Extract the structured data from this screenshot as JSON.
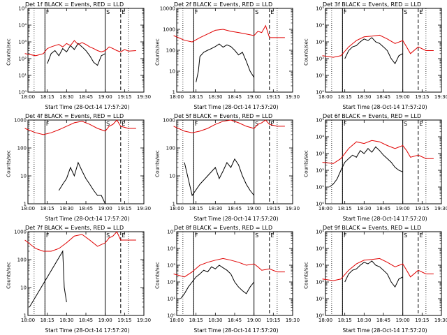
{
  "colors": {
    "events": "#000000",
    "lld": "#e00000",
    "axes": "#000000"
  },
  "chart_data": [
    {
      "type": "line",
      "title": "Det 1f BLACK = Events, RED = LLD",
      "xlabel": "Start Time (28-Oct-14 17:57:20)",
      "ylabel": "Counts/sec",
      "scale": "log",
      "ylim": [
        1,
        100000
      ],
      "ytick_labels": [
        "10⁰",
        "10¹",
        "10²",
        "10³",
        "10⁴",
        "10⁵"
      ],
      "series": [
        {
          "name": "Events",
          "x": [
            18.25,
            18.3,
            18.35,
            18.4,
            18.45,
            18.5,
            18.55,
            18.6,
            18.65,
            18.7,
            18.75,
            18.8,
            18.85,
            18.9,
            18.95,
            19.0
          ],
          "values": [
            50,
            200,
            300,
            150,
            400,
            250,
            600,
            350,
            800,
            500,
            300,
            150,
            60,
            40,
            150,
            200
          ]
        },
        {
          "name": "LLD",
          "x": [
            17.96,
            18.1,
            18.2,
            18.25,
            18.3,
            18.35,
            18.4,
            18.45,
            18.5,
            18.55,
            18.6,
            18.65,
            18.7,
            18.75,
            18.8,
            18.85,
            18.9,
            18.95,
            19.0,
            19.05,
            19.1,
            19.15,
            19.2,
            19.25,
            19.3,
            19.4
          ],
          "values": [
            200,
            150,
            200,
            400,
            500,
            600,
            700,
            500,
            800,
            600,
            1200,
            700,
            900,
            700,
            500,
            400,
            300,
            250,
            300,
            500,
            400,
            300,
            250,
            350,
            280,
            300
          ]
        }
      ],
      "markers": [
        {
          "label": "F",
          "x": 18.22
        },
        {
          "label": "S",
          "x": 19.0
        },
        {
          "label": "E",
          "x": 19.2
        }
      ]
    },
    {
      "type": "line",
      "title": "Det 2f BLACK = Events, RED = LLD",
      "xlabel": "Start Time (28-Oct-14 17:57:20)",
      "ylabel": "Counts/sec",
      "scale": "log",
      "ylim": [
        1,
        10000
      ],
      "ytick_labels": [
        "1",
        "10",
        "100",
        "1000",
        "10000"
      ],
      "series": [
        {
          "name": "Events",
          "x": [
            18.25,
            18.28,
            18.3,
            18.35,
            18.4,
            18.45,
            18.5,
            18.55,
            18.6,
            18.65,
            18.7,
            18.75,
            18.8,
            18.85,
            18.9,
            18.95,
            19.0
          ],
          "values": [
            3,
            10,
            50,
            80,
            100,
            120,
            150,
            200,
            140,
            180,
            150,
            100,
            60,
            80,
            30,
            10,
            5
          ]
        },
        {
          "name": "LLD",
          "x": [
            17.96,
            18.1,
            18.2,
            18.3,
            18.4,
            18.5,
            18.6,
            18.7,
            18.8,
            18.9,
            19.0,
            19.05,
            19.1,
            19.15,
            19.2,
            19.3,
            19.4
          ],
          "values": [
            500,
            300,
            250,
            400,
            600,
            900,
            1000,
            800,
            700,
            600,
            500,
            800,
            700,
            1500,
            400,
            400,
            400
          ]
        }
      ],
      "markers": [
        {
          "label": "F",
          "x": 18.22
        },
        {
          "label": "S",
          "x": 19.0
        },
        {
          "label": "E",
          "x": 19.2
        }
      ]
    },
    {
      "type": "line",
      "title": "Det 3f BLACK = Events, RED = LLD",
      "xlabel": "Start Time (28-Oct-14 17:57:20)",
      "ylabel": "Counts/sec",
      "scale": "log",
      "ylim": [
        1,
        100000
      ],
      "ytick_labels": [
        "10⁰",
        "10¹",
        "10²",
        "10³",
        "10⁴",
        "10⁵"
      ],
      "series": [
        {
          "name": "Events",
          "x": [
            18.25,
            18.3,
            18.35,
            18.4,
            18.45,
            18.5,
            18.55,
            18.6,
            18.65,
            18.7,
            18.75,
            18.8,
            18.85,
            18.9,
            18.95,
            19.0
          ],
          "values": [
            100,
            300,
            500,
            600,
            1000,
            1500,
            1200,
            1800,
            1000,
            800,
            500,
            300,
            100,
            50,
            150,
            200
          ]
        },
        {
          "name": "LLD",
          "x": [
            17.96,
            18.1,
            18.2,
            18.3,
            18.4,
            18.5,
            18.6,
            18.7,
            18.8,
            18.9,
            19.0,
            19.05,
            19.1,
            19.2,
            19.3,
            19.4
          ],
          "values": [
            150,
            120,
            150,
            500,
            1200,
            2000,
            2200,
            2500,
            1500,
            800,
            1200,
            500,
            200,
            500,
            300,
            300
          ]
        }
      ],
      "markers": [
        {
          "label": "F",
          "x": 18.22
        },
        {
          "label": "S",
          "x": 19.0
        },
        {
          "label": "E",
          "x": 19.2
        }
      ]
    },
    {
      "type": "line",
      "title": "Det 4f BLACK = Events, RED = LLD",
      "xlabel": "Start Time (28-Oct-14 17:57:20)",
      "ylabel": "Counts/sec",
      "scale": "log",
      "ylim": [
        1,
        1000
      ],
      "ytick_labels": [
        "1",
        "10",
        "100",
        "1000"
      ],
      "series": [
        {
          "name": "Events",
          "x": [
            18.4,
            18.45,
            18.5,
            18.55,
            18.6,
            18.65,
            18.7,
            18.75,
            18.8,
            18.85,
            18.9,
            18.95,
            19.0
          ],
          "values": [
            3,
            5,
            8,
            20,
            10,
            30,
            15,
            8,
            5,
            3,
            2,
            2,
            1
          ]
        },
        {
          "name": "LLD",
          "x": [
            17.96,
            18.1,
            18.2,
            18.3,
            18.4,
            18.5,
            18.6,
            18.7,
            18.8,
            18.9,
            19.0,
            19.05,
            19.1,
            19.15,
            19.2,
            19.3,
            19.4
          ],
          "values": [
            500,
            350,
            300,
            350,
            450,
            600,
            800,
            900,
            700,
            500,
            400,
            600,
            700,
            1000,
            600,
            500,
            500
          ]
        }
      ],
      "markers": [
        {
          "label": "F",
          "x": 18.22
        },
        {
          "label": "S",
          "x": 19.0
        },
        {
          "label": "E",
          "x": 19.2
        }
      ]
    },
    {
      "type": "line",
      "title": "Det 5f BLACK = Events, RED = LLD",
      "xlabel": "Start Time (28-Oct-14 17:57:20)",
      "ylabel": "Counts/sec",
      "scale": "log",
      "ylim": [
        1,
        1000
      ],
      "ytick_labels": [
        "1",
        "10",
        "100",
        "1000"
      ],
      "series": [
        {
          "name": "Events",
          "x": [
            18.1,
            18.2,
            18.3,
            18.4,
            18.5,
            18.55,
            18.6,
            18.65,
            18.7,
            18.75,
            18.8,
            18.85,
            18.9,
            18.95,
            19.0
          ],
          "values": [
            30,
            2,
            5,
            10,
            20,
            8,
            15,
            30,
            20,
            40,
            25,
            10,
            5,
            3,
            2
          ]
        },
        {
          "name": "LLD",
          "x": [
            17.96,
            18.1,
            18.2,
            18.3,
            18.4,
            18.5,
            18.6,
            18.7,
            18.8,
            18.9,
            19.0,
            19.05,
            19.1,
            19.15,
            19.2,
            19.3,
            19.4
          ],
          "values": [
            600,
            400,
            350,
            400,
            500,
            700,
            900,
            1000,
            800,
            600,
            500,
            700,
            800,
            1000,
            700,
            600,
            600
          ]
        }
      ],
      "markers": [
        {
          "label": "F",
          "x": 18.22
        },
        {
          "label": "S",
          "x": 19.0
        },
        {
          "label": "E",
          "x": 19.2
        }
      ]
    },
    {
      "type": "line",
      "title": "Det 6f BLACK = Events, RED = LLD",
      "xlabel": "Start Time (28-Oct-14 17:57:20)",
      "ylabel": "Counts/sec",
      "scale": "log",
      "ylim": [
        1,
        100000
      ],
      "ytick_labels": [
        "10⁰",
        "10¹",
        "10²",
        "10³",
        "10⁴",
        "10⁵"
      ],
      "series": [
        {
          "name": "Events",
          "x": [
            18.05,
            18.1,
            18.15,
            18.2,
            18.25,
            18.3,
            18.35,
            18.4,
            18.45,
            18.5,
            18.55,
            18.6,
            18.65,
            18.7,
            18.75,
            18.8,
            18.85,
            18.9,
            18.95,
            19.0
          ],
          "values": [
            10,
            15,
            30,
            100,
            300,
            500,
            800,
            600,
            1500,
            1000,
            2000,
            1200,
            2500,
            1500,
            800,
            500,
            300,
            150,
            100,
            80
          ]
        },
        {
          "name": "LLD",
          "x": [
            17.96,
            18.1,
            18.2,
            18.3,
            18.4,
            18.5,
            18.6,
            18.7,
            18.8,
            18.9,
            19.0,
            19.05,
            19.1,
            19.2,
            19.3,
            19.4
          ],
          "values": [
            300,
            250,
            500,
            2000,
            5000,
            4000,
            6000,
            5000,
            3000,
            2000,
            3000,
            1500,
            600,
            800,
            500,
            500
          ]
        }
      ],
      "markers": [
        {
          "label": "F",
          "x": 18.22
        },
        {
          "label": "S",
          "x": 19.0
        },
        {
          "label": "E",
          "x": 19.2
        }
      ]
    },
    {
      "type": "line",
      "title": "Det 7f BLACK = Events, RED = LLD",
      "xlabel": "Start Time (28-Oct-14 17:57:20)",
      "ylabel": "Counts/sec",
      "scale": "log",
      "ylim": [
        1,
        1000
      ],
      "ytick_labels": [
        "1",
        "10",
        "100",
        "1000"
      ],
      "series": [
        {
          "name": "Events",
          "x": [
            18.02,
            18.45,
            18.47,
            18.5
          ],
          "values": [
            2,
            200,
            10,
            3
          ]
        },
        {
          "name": "LLD",
          "x": [
            17.96,
            18.1,
            18.2,
            18.3,
            18.4,
            18.5,
            18.6,
            18.7,
            18.8,
            18.9,
            19.0,
            19.05,
            19.1,
            19.15,
            19.2,
            19.3,
            19.4
          ],
          "values": [
            500,
            250,
            200,
            200,
            250,
            400,
            700,
            800,
            500,
            300,
            400,
            600,
            700,
            1000,
            500,
            500,
            500
          ]
        }
      ],
      "markers": [
        {
          "label": "F",
          "x": 18.22
        },
        {
          "label": "S",
          "x": 19.0
        },
        {
          "label": "E",
          "x": 19.2
        }
      ]
    },
    {
      "type": "line",
      "title": "Det 8f BLACK = Events, RED = LLD",
      "xlabel": "Start Time (28-Oct-14 17:57:20)",
      "ylabel": "Counts/sec",
      "scale": "log",
      "ylim": [
        1,
        100000
      ],
      "ytick_labels": [
        "10⁰",
        "10¹",
        "10²",
        "10³",
        "10⁴",
        "10⁵"
      ],
      "series": [
        {
          "name": "Events",
          "x": [
            18.05,
            18.1,
            18.15,
            18.2,
            18.25,
            18.3,
            18.35,
            18.4,
            18.45,
            18.5,
            18.55,
            18.6,
            18.65,
            18.7,
            18.75,
            18.8,
            18.85,
            18.9,
            18.95,
            19.0
          ],
          "values": [
            10,
            20,
            50,
            100,
            200,
            300,
            500,
            400,
            800,
            600,
            1000,
            700,
            500,
            300,
            100,
            50,
            30,
            20,
            50,
            100
          ]
        },
        {
          "name": "LLD",
          "x": [
            17.96,
            18.1,
            18.2,
            18.3,
            18.4,
            18.5,
            18.6,
            18.7,
            18.8,
            18.9,
            19.0,
            19.05,
            19.1,
            19.2,
            19.3,
            19.4
          ],
          "values": [
            300,
            200,
            400,
            1000,
            1500,
            2000,
            2500,
            2000,
            1500,
            1000,
            1200,
            800,
            500,
            600,
            400,
            400
          ]
        }
      ],
      "markers": [
        {
          "label": "F",
          "x": 18.22
        },
        {
          "label": "S",
          "x": 19.0
        },
        {
          "label": "E",
          "x": 19.2
        }
      ]
    },
    {
      "type": "line",
      "title": "Det 9f BLACK = Events, RED = LLD",
      "xlabel": "Start Time (28-Oct-14 17:57:20)",
      "ylabel": "Counts/sec",
      "scale": "log",
      "ylim": [
        1,
        100000
      ],
      "ytick_labels": [
        "10⁰",
        "10¹",
        "10²",
        "10³",
        "10⁴",
        "10⁵"
      ],
      "series": [
        {
          "name": "Events",
          "x": [
            18.25,
            18.3,
            18.35,
            18.4,
            18.45,
            18.5,
            18.55,
            18.6,
            18.65,
            18.7,
            18.75,
            18.8,
            18.85,
            18.9,
            18.95,
            19.0
          ],
          "values": [
            100,
            300,
            500,
            600,
            1000,
            1500,
            1200,
            1800,
            1000,
            800,
            500,
            300,
            100,
            50,
            150,
            200
          ]
        },
        {
          "name": "LLD",
          "x": [
            17.96,
            18.1,
            18.2,
            18.3,
            18.4,
            18.5,
            18.6,
            18.7,
            18.8,
            18.9,
            19.0,
            19.05,
            19.1,
            19.2,
            19.3,
            19.4
          ],
          "values": [
            150,
            120,
            150,
            500,
            1200,
            2000,
            2200,
            2500,
            1500,
            800,
            1200,
            500,
            200,
            500,
            300,
            300
          ]
        }
      ],
      "markers": [
        {
          "label": "F",
          "x": 18.22
        },
        {
          "label": "S",
          "x": 19.0
        },
        {
          "label": "E",
          "x": 19.2
        }
      ]
    }
  ],
  "xaxis": {
    "range": [
      18.0,
      19.5
    ],
    "ticks": [
      18.0,
      18.25,
      18.5,
      18.75,
      19.0,
      19.25,
      19.5
    ],
    "tick_labels": [
      "18:00",
      "18:15",
      "18:30",
      "18:45",
      "19:00",
      "19:15",
      "19:30"
    ]
  }
}
